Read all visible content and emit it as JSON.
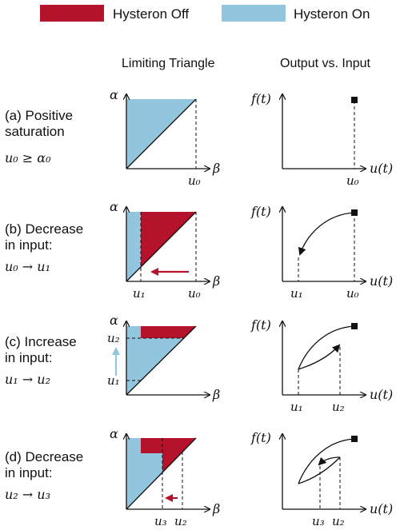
{
  "legend": {
    "off_label": "Hysteron Off",
    "on_label": "Hysteron On",
    "off_color": "#b5132b",
    "on_color": "#92c5de"
  },
  "columns": {
    "left": "Limiting Triangle",
    "right": "Output vs. Input"
  },
  "axes": {
    "alpha": "α",
    "beta": "β",
    "f": "f(t)",
    "u": "u(t)"
  },
  "rows": [
    {
      "title_line1": "(a) Positive",
      "title_line2": "saturation",
      "condition": "u₀ ≥ α₀",
      "tri_labels": [
        "u₀"
      ],
      "out_labels": [
        "u₀"
      ]
    },
    {
      "title_line1": "(b) Decrease",
      "title_line2": "in input:",
      "condition": "u₀ → u₁",
      "tri_labels": [
        "u₁",
        "u₀"
      ],
      "out_labels": [
        "u₁",
        "u₀"
      ]
    },
    {
      "title_line1": "(c) Increase",
      "title_line2": "in input:",
      "condition": "u₁ → u₂",
      "tri_labels": [
        "u₂",
        "u₁"
      ],
      "out_labels": [
        "u₁",
        "u₂"
      ]
    },
    {
      "title_line1": "(d) Decrease",
      "title_line2": "in input:",
      "condition": "u₂ → u₃",
      "tri_labels": [
        "u₃",
        "u₂"
      ],
      "out_labels": [
        "u₃",
        "u₂"
      ]
    }
  ]
}
